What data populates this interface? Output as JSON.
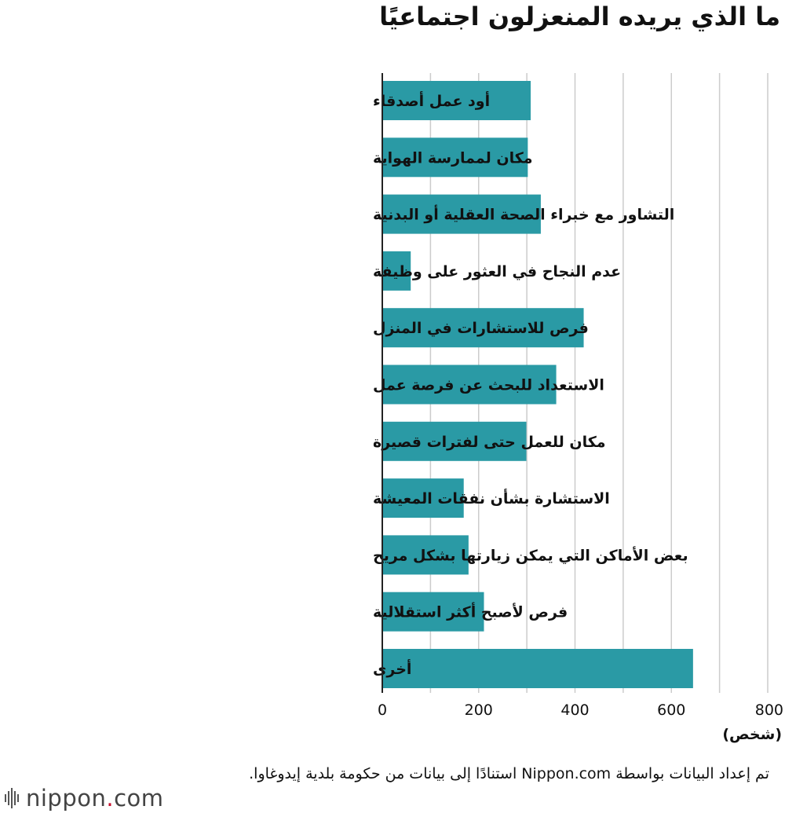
{
  "title": "ما الذي يريده المنعزلون اجتماعيًا",
  "colors": {
    "bar": "#2a9aa5",
    "grid": "#cccccc",
    "axis": "#222222"
  },
  "chart_data": {
    "type": "bar",
    "orientation": "horizontal",
    "categories": [
      "أود عمل أصدقاء",
      "مكان لممارسة الهواية",
      "التشاور مع خبراء الصحة العقلية أو البدنية",
      "عدم النجاح في العثور على وظيفة",
      "فرص للاستشارات في المنزل",
      "الاستعداد للبحث عن فرصة عمل",
      "مكان للعمل حتى لفترات قصيرة",
      "الاستشارة بشأن نفقات المعيشة",
      "بعض الأماكن التي يمكن زيارتها بشكل مريح",
      "فرص لأصبح أكثر استقلالية",
      "أخرى"
    ],
    "values": [
      308,
      302,
      329,
      59,
      418,
      361,
      299,
      169,
      179,
      211,
      645
    ],
    "xlim": [
      0,
      800
    ],
    "xticks": [
      0,
      200,
      400,
      600,
      800
    ],
    "unit": "(شخص)",
    "grid": true
  },
  "source": "تم إعداد البيانات بواسطة Nippon.com استنادًا إلى بيانات من حكومة بلدية إيدوغاوا.",
  "logo": {
    "name": "nippon",
    "dot": ".",
    "suffix": "com"
  }
}
